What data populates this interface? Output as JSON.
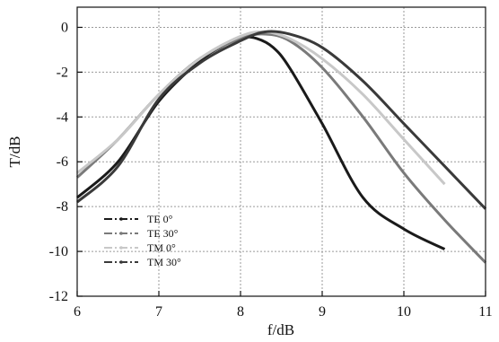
{
  "chart_data": {
    "type": "line",
    "xlabel": "f/dB",
    "ylabel": "T/dB",
    "xlim": [
      6,
      11
    ],
    "ylim": [
      -12,
      0.9
    ],
    "x_ticks": [
      "6",
      "7",
      "8",
      "9",
      "10",
      "11"
    ],
    "y_ticks": [
      "0",
      "-2",
      "-4",
      "-6",
      "-8",
      "-10",
      "-12"
    ],
    "grid": true,
    "legend_position": "bottom-left",
    "series": [
      {
        "name": "TE 0°",
        "color": "#1a1a1a",
        "points": [
          [
            6.0,
            -7.6
          ],
          [
            6.5,
            -6.0
          ],
          [
            7.0,
            -3.3
          ],
          [
            7.5,
            -1.5
          ],
          [
            7.8,
            -0.8
          ],
          [
            8.0,
            -0.45
          ],
          [
            8.2,
            -0.5
          ],
          [
            8.4,
            -0.9
          ],
          [
            8.6,
            -1.8
          ],
          [
            9.0,
            -4.3
          ],
          [
            9.5,
            -7.6
          ],
          [
            10.0,
            -9.0
          ],
          [
            10.5,
            -9.9
          ]
        ]
      },
      {
        "name": "TE 30°",
        "color": "#7a7a7a",
        "points": [
          [
            6.0,
            -6.7
          ],
          [
            6.5,
            -5.0
          ],
          [
            7.0,
            -3.0
          ],
          [
            7.5,
            -1.4
          ],
          [
            8.0,
            -0.5
          ],
          [
            8.3,
            -0.3
          ],
          [
            8.6,
            -0.6
          ],
          [
            9.0,
            -1.8
          ],
          [
            9.5,
            -4.0
          ],
          [
            10.0,
            -6.5
          ],
          [
            10.5,
            -8.6
          ],
          [
            11.0,
            -10.5
          ]
        ]
      },
      {
        "name": "TM 0°",
        "color": "#c8c8c8",
        "points": [
          [
            6.0,
            -6.5
          ],
          [
            6.5,
            -5.0
          ],
          [
            7.0,
            -3.0
          ],
          [
            7.5,
            -1.4
          ],
          [
            8.0,
            -0.4
          ],
          [
            8.3,
            -0.2
          ],
          [
            8.6,
            -0.5
          ],
          [
            9.0,
            -1.4
          ],
          [
            9.5,
            -3.0
          ],
          [
            10.0,
            -5.0
          ],
          [
            10.5,
            -7.0
          ]
        ]
      },
      {
        "name": "TM 30°",
        "color": "#3a3a3a",
        "points": [
          [
            6.0,
            -7.8
          ],
          [
            6.5,
            -6.2
          ],
          [
            7.0,
            -3.2
          ],
          [
            7.5,
            -1.6
          ],
          [
            8.0,
            -0.6
          ],
          [
            8.3,
            -0.2
          ],
          [
            8.6,
            -0.3
          ],
          [
            9.0,
            -0.9
          ],
          [
            9.5,
            -2.4
          ],
          [
            10.0,
            -4.3
          ],
          [
            10.5,
            -6.2
          ],
          [
            11.0,
            -8.1
          ]
        ]
      }
    ]
  }
}
